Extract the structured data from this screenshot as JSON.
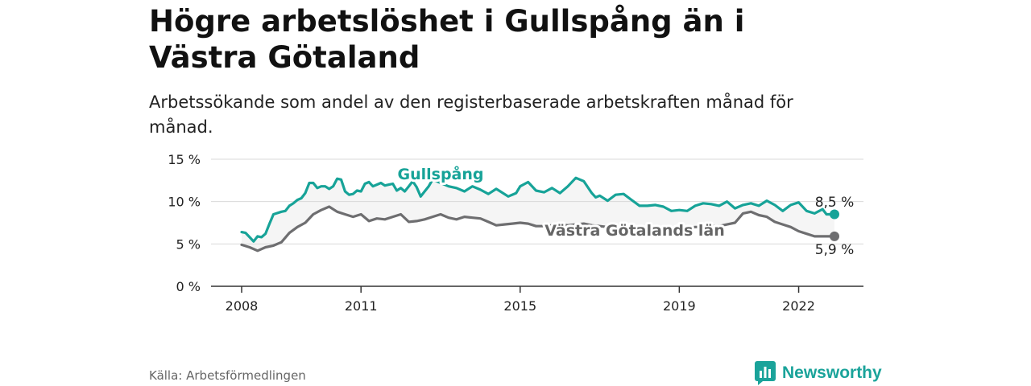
{
  "header": {
    "title": "Högre arbetslöshet i Gullspång än i Västra Götaland",
    "subtitle": "Arbetssökande som andel av den registerbaserade arbetskraften månad för månad."
  },
  "footer": {
    "source": "Källa: Arbetsförmedlingen",
    "brand": "Newsworthy"
  },
  "colors": {
    "gullspang": "#17a398",
    "vgl": "#6e6e70",
    "grid": "#d9d9d9",
    "axis": "#333333",
    "band": "#eeeeee"
  },
  "chart_data": {
    "type": "line",
    "title": "Högre arbetslöshet i Gullspång än i Västra Götaland",
    "ylabel": "Arbetssökande som andel av den registerbaserade arbetskraften",
    "ylim": [
      0,
      15
    ],
    "yticks": [
      0,
      5,
      10,
      15
    ],
    "ytick_labels": [
      "0 %",
      "5 %",
      "10 %",
      "15 %"
    ],
    "xlim": [
      2008,
      2022.9
    ],
    "xticks": [
      2008,
      2011,
      2015,
      2019,
      2022
    ],
    "xtick_labels": [
      "2008",
      "2011",
      "2015",
      "2019",
      "2022"
    ],
    "grid": true,
    "series": [
      {
        "name": "Gullspång",
        "color": "#17a398",
        "end_label": "8,5 %",
        "x": [
          2008.0,
          2008.1,
          2008.2,
          2008.3,
          2008.4,
          2008.5,
          2008.6,
          2008.7,
          2008.8,
          2009.0,
          2009.1,
          2009.2,
          2009.3,
          2009.4,
          2009.5,
          2009.6,
          2009.7,
          2009.8,
          2009.9,
          2010.0,
          2010.1,
          2010.2,
          2010.3,
          2010.4,
          2010.5,
          2010.6,
          2010.7,
          2010.8,
          2010.9,
          2011.0,
          2011.1,
          2011.2,
          2011.3,
          2011.4,
          2011.5,
          2011.6,
          2011.7,
          2011.8,
          2011.9,
          2012.0,
          2012.1,
          2012.2,
          2012.3,
          2012.4,
          2012.5,
          2012.6,
          2012.7,
          2012.8,
          2013.2,
          2013.4,
          2013.6,
          2013.8,
          2014.0,
          2014.2,
          2014.4,
          2014.5,
          2014.7,
          2014.9,
          2015.0,
          2015.2,
          2015.4,
          2015.6,
          2015.8,
          2016.0,
          2016.2,
          2016.4,
          2016.6,
          2016.8,
          2016.9,
          2017.0,
          2017.2,
          2017.4,
          2017.6,
          2017.8,
          2018.0,
          2018.2,
          2018.4,
          2018.6,
          2018.8,
          2019.0,
          2019.2,
          2019.4,
          2019.6,
          2019.8,
          2020.0,
          2020.2,
          2020.4,
          2020.6,
          2020.8,
          2021.0,
          2021.2,
          2021.4,
          2021.6,
          2021.8,
          2022.0,
          2022.2,
          2022.4,
          2022.6,
          2022.7,
          2022.9
        ],
        "y": [
          6.4,
          6.3,
          5.8,
          5.3,
          5.9,
          5.8,
          6.2,
          7.4,
          8.5,
          8.8,
          8.9,
          9.5,
          9.8,
          10.2,
          10.4,
          11.0,
          12.2,
          12.2,
          11.6,
          11.8,
          11.8,
          11.5,
          11.8,
          12.7,
          12.6,
          11.2,
          10.8,
          10.9,
          11.3,
          11.2,
          12.1,
          12.3,
          11.8,
          12.0,
          12.2,
          11.9,
          12.0,
          12.1,
          11.3,
          11.6,
          11.2,
          11.8,
          12.4,
          11.7,
          10.6,
          11.2,
          11.8,
          12.6,
          11.8,
          11.6,
          11.2,
          11.8,
          11.4,
          10.9,
          11.5,
          11.2,
          10.6,
          11.0,
          11.8,
          12.3,
          11.3,
          11.1,
          11.6,
          11.0,
          11.8,
          12.8,
          12.4,
          11.0,
          10.5,
          10.7,
          10.1,
          10.8,
          10.9,
          10.2,
          9.5,
          9.5,
          9.6,
          9.4,
          8.9,
          9.0,
          8.9,
          9.5,
          9.8,
          9.7,
          9.5,
          10.0,
          9.2,
          9.6,
          9.8,
          9.5,
          10.1,
          9.6,
          8.9,
          9.6,
          9.9,
          8.9,
          8.6,
          9.1,
          8.5,
          8.5
        ]
      },
      {
        "name": "Västra Götalands län",
        "color": "#6e6e70",
        "end_label": "5,9 %",
        "x": [
          2008.0,
          2008.2,
          2008.4,
          2008.6,
          2008.8,
          2009.0,
          2009.2,
          2009.4,
          2009.6,
          2009.8,
          2010.0,
          2010.2,
          2010.4,
          2010.6,
          2010.8,
          2011.0,
          2011.2,
          2011.4,
          2011.6,
          2011.8,
          2012.0,
          2012.2,
          2012.4,
          2012.6,
          2012.8,
          2013.0,
          2013.2,
          2013.4,
          2013.6,
          2013.8,
          2014.0,
          2014.2,
          2014.4,
          2014.6,
          2014.8,
          2015.0,
          2015.2,
          2015.4,
          2015.6,
          2015.8,
          2016.0,
          2016.2,
          2016.4,
          2016.6,
          2016.8,
          2017.0,
          2017.2,
          2017.4,
          2017.6,
          2017.8,
          2018.0,
          2018.2,
          2018.4,
          2018.6,
          2018.8,
          2019.0,
          2019.2,
          2019.4,
          2019.6,
          2019.8,
          2020.0,
          2020.2,
          2020.4,
          2020.6,
          2020.8,
          2021.0,
          2021.2,
          2021.4,
          2021.6,
          2021.8,
          2022.0,
          2022.2,
          2022.4,
          2022.6,
          2022.9
        ],
        "y": [
          4.9,
          4.6,
          4.2,
          4.6,
          4.8,
          5.2,
          6.3,
          7.0,
          7.5,
          8.5,
          9.0,
          9.4,
          8.8,
          8.5,
          8.2,
          8.5,
          7.7,
          8.0,
          7.9,
          8.2,
          8.5,
          7.6,
          7.7,
          7.9,
          8.2,
          8.5,
          8.1,
          7.9,
          8.2,
          8.1,
          8.0,
          7.6,
          7.2,
          7.3,
          7.4,
          7.5,
          7.4,
          7.1,
          7.1,
          7.2,
          7.3,
          7.2,
          7.3,
          7.4,
          7.2,
          7.1,
          7.0,
          7.2,
          7.3,
          7.1,
          7.0,
          6.9,
          6.9,
          6.8,
          6.8,
          6.8,
          6.9,
          7.0,
          7.0,
          7.1,
          7.1,
          7.3,
          7.5,
          8.6,
          8.8,
          8.4,
          8.2,
          7.6,
          7.3,
          7.0,
          6.5,
          6.2,
          5.9,
          5.9,
          5.9
        ]
      }
    ]
  }
}
